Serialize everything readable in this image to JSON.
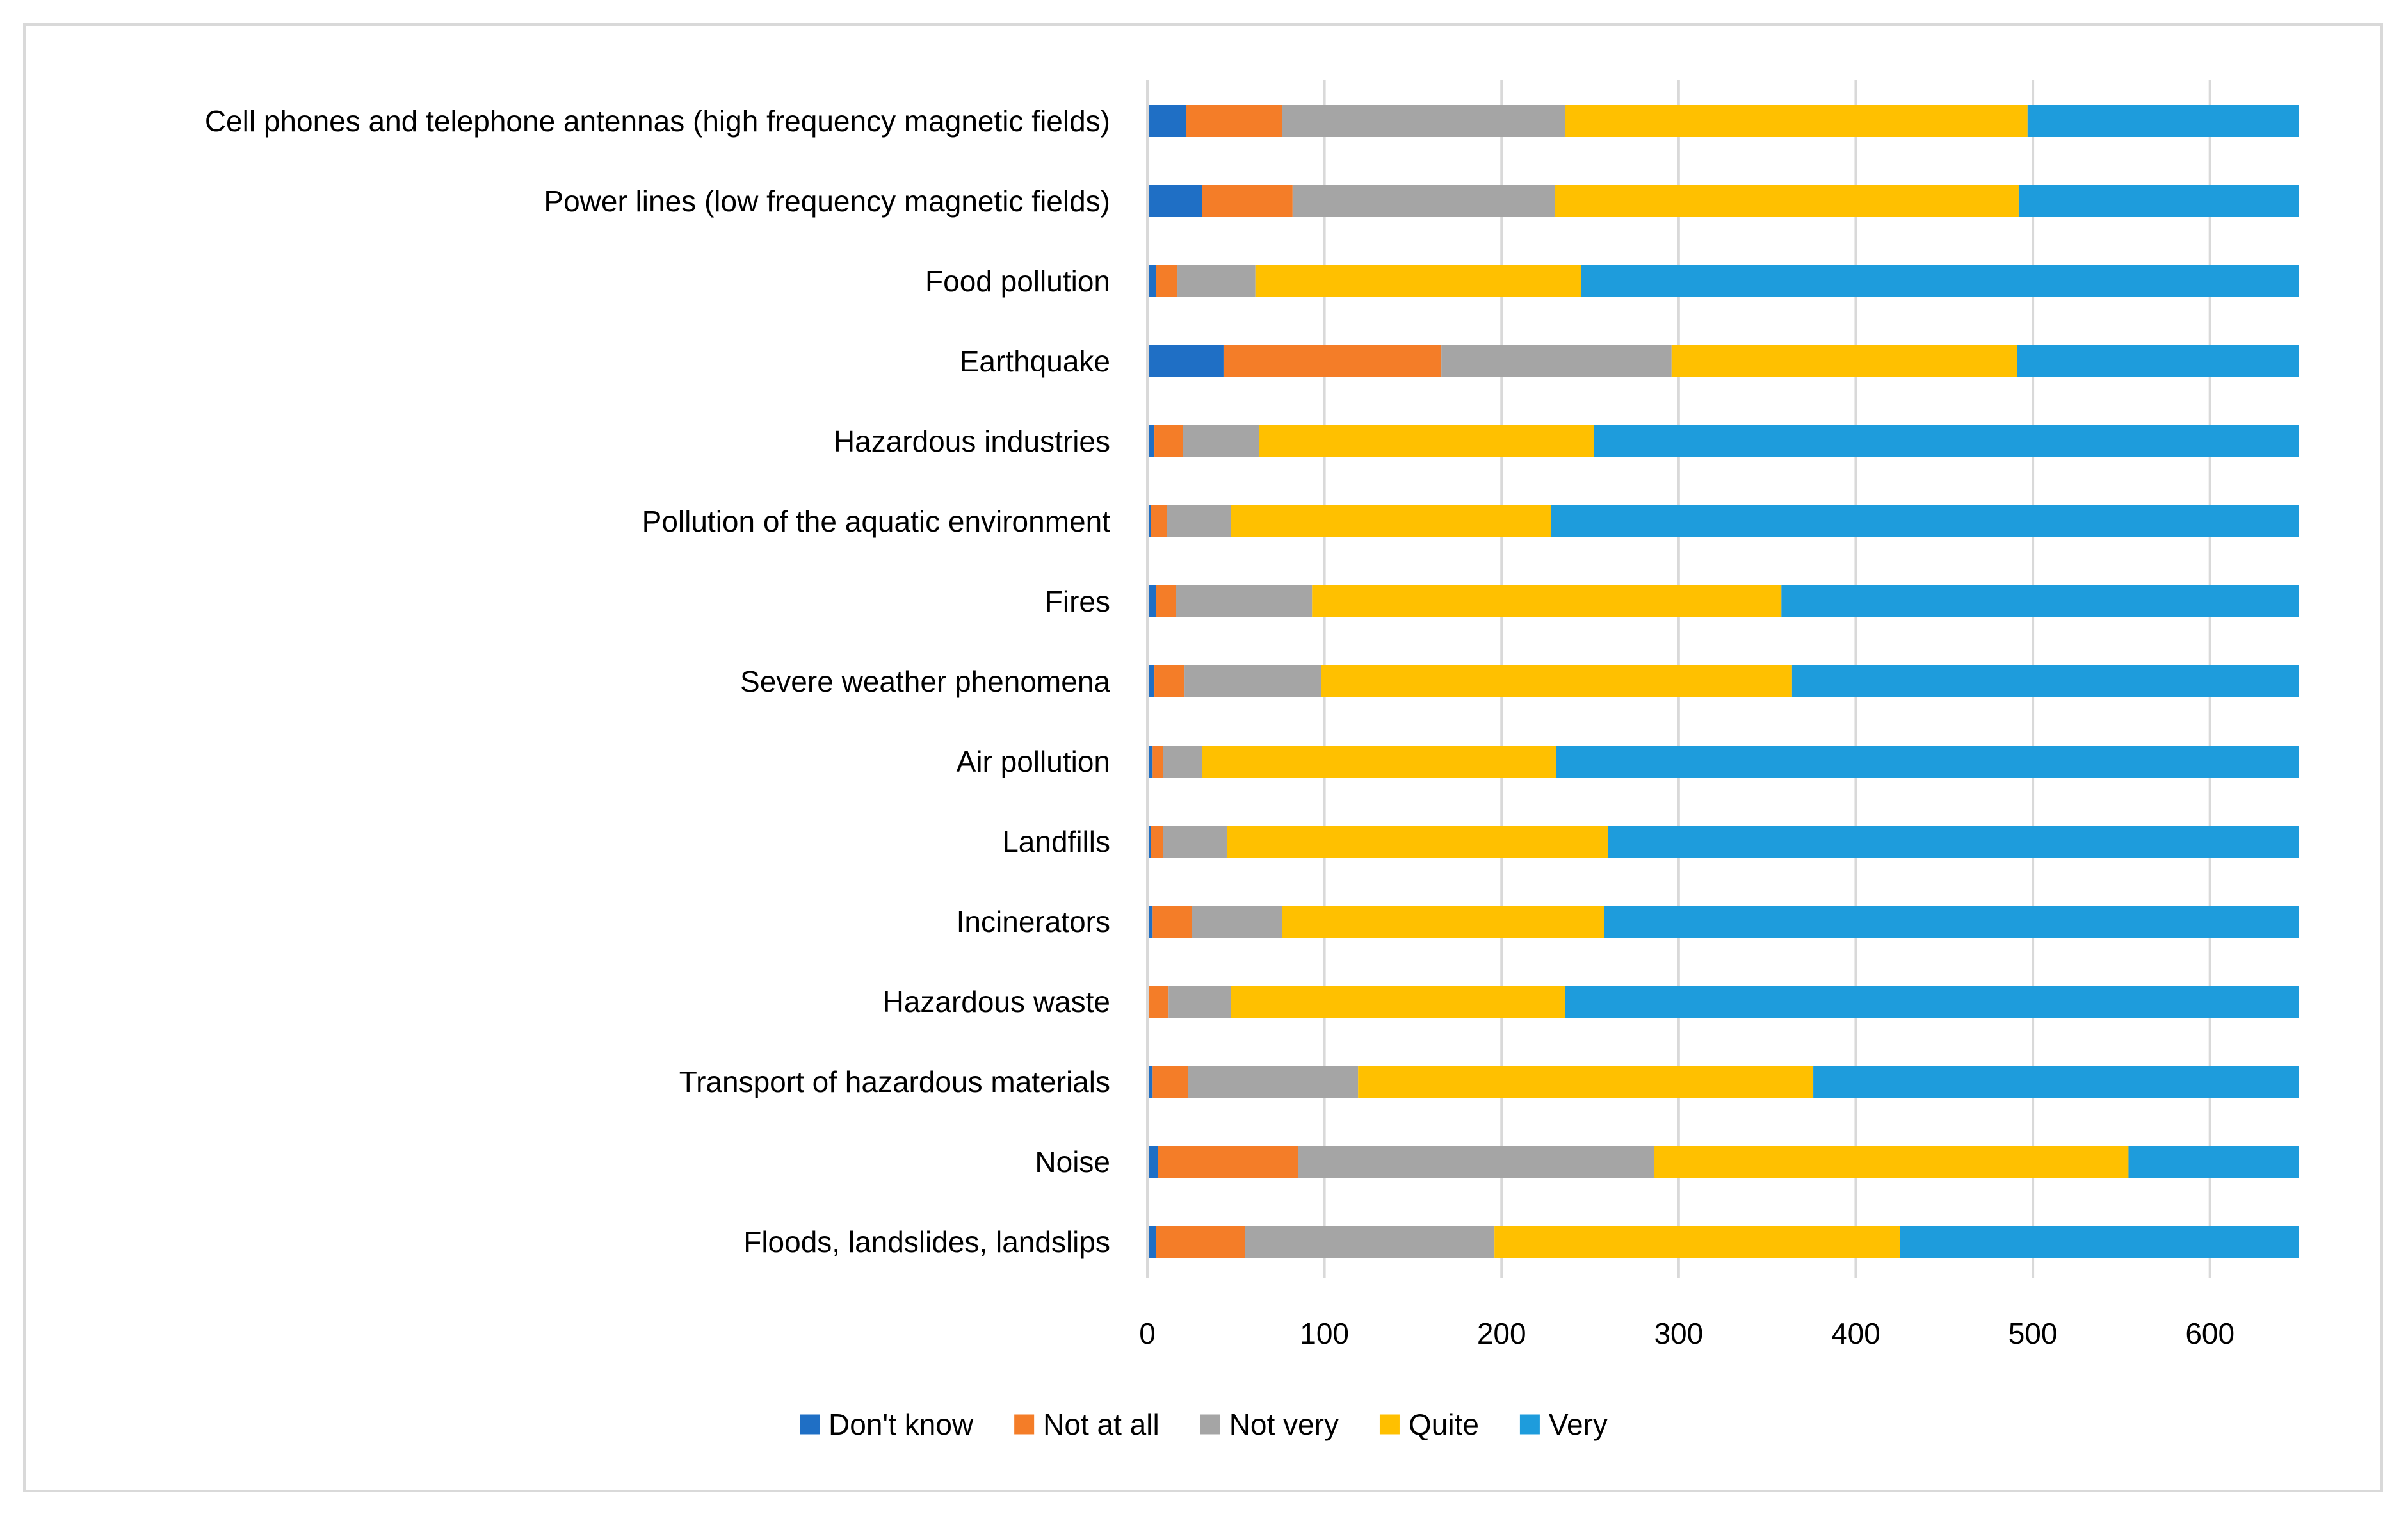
{
  "chart_data": {
    "type": "bar",
    "orientation": "horizontal",
    "stacked": true,
    "categories": [
      "Cell phones and telephone antennas (high frequency magnetic fields)",
      "Power lines (low frequency magnetic fields)",
      "Food pollution",
      "Earthquake",
      "Hazardous industries",
      "Pollution of the aquatic environment",
      "Fires",
      "Severe weather phenomena",
      "Air pollution",
      "Landfills",
      "Incinerators",
      "Hazardous waste",
      "Transport of hazardous materials",
      "Noise",
      "Floods, landslides, landslips"
    ],
    "series": [
      {
        "name": "Don't know",
        "color": "#1f6fc5",
        "values": [
          22,
          31,
          5,
          43,
          4,
          2,
          5,
          4,
          3,
          2,
          3,
          1,
          3,
          6,
          5
        ]
      },
      {
        "name": "Not at all",
        "color": "#f47d28",
        "values": [
          54,
          51,
          12,
          123,
          16,
          9,
          11,
          17,
          6,
          7,
          22,
          11,
          20,
          79,
          50
        ]
      },
      {
        "name": "Not very",
        "color": "#a5a5a5",
        "values": [
          160,
          148,
          44,
          130,
          43,
          36,
          77,
          77,
          22,
          36,
          51,
          35,
          96,
          201,
          141
        ]
      },
      {
        "name": "Quite",
        "color": "#ffc000",
        "values": [
          261,
          262,
          184,
          195,
          189,
          181,
          265,
          266,
          200,
          215,
          182,
          189,
          257,
          268,
          229
        ]
      },
      {
        "name": "Very",
        "color": "#1e9cdc",
        "values": [
          153,
          158,
          405,
          159,
          398,
          422,
          292,
          286,
          419,
          390,
          392,
          414,
          274,
          96,
          225
        ]
      }
    ],
    "xlim": [
      0,
      650
    ],
    "xticks": [
      0,
      100,
      200,
      300,
      400,
      500,
      600
    ],
    "grid": true,
    "legend_position": "bottom",
    "title": "",
    "xlabel": "",
    "ylabel": ""
  }
}
